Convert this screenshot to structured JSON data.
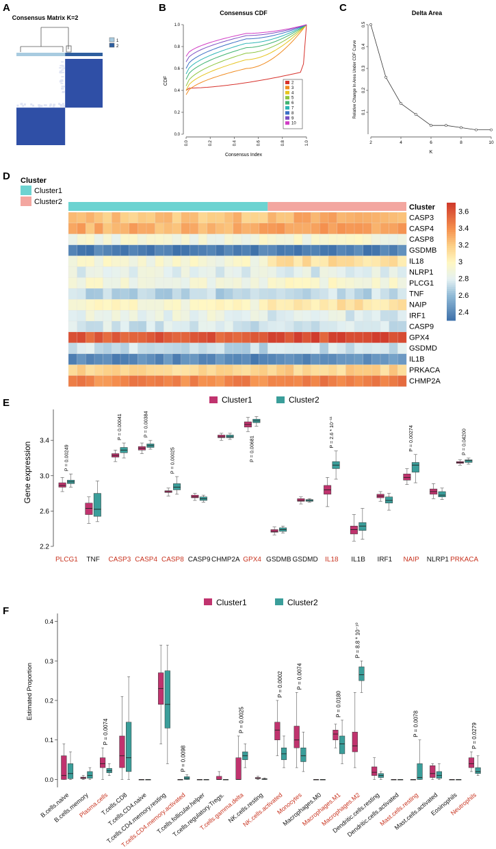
{
  "colors": {
    "cluster1": "#c0336e",
    "cluster2": "#3a9e9a",
    "clusterbar1": "#6cd3d1",
    "clusterbar2": "#f3a6a0",
    "highlight": "#c8331f",
    "consensus_dark": "#2f4fa6",
    "consensus_light": "#dfe4f4"
  },
  "panels": {
    "a": "A",
    "b": "B",
    "c": "C",
    "d": "D",
    "e": "E",
    "f": "F"
  },
  "panel_a": {
    "title": "Consensus Matrix K=2",
    "legend": [
      "1",
      "2"
    ],
    "k": 2
  },
  "chart_data": [
    {
      "id": "consensus_cdf",
      "type": "line",
      "title": "Consensus CDF",
      "xlabel": "Consensus Index",
      "ylabel": "CDF",
      "xlim": [
        0,
        1
      ],
      "ylim": [
        0,
        1
      ],
      "xticks": [
        "0.0",
        "0.2",
        "0.4",
        "0.6",
        "0.8",
        "1.0"
      ],
      "yticks": [
        "0.0",
        "0.2",
        "0.4",
        "0.6",
        "0.8",
        "1.0"
      ],
      "series": [
        {
          "name": "2",
          "color": "#d7302a",
          "start": 0.42,
          "mid": 0.5
        },
        {
          "name": "3",
          "color": "#f08a1e",
          "start": 0.36,
          "mid": 0.6
        },
        {
          "name": "4",
          "color": "#e6c31d",
          "start": 0.4,
          "mid": 0.68
        },
        {
          "name": "5",
          "color": "#8dc53f",
          "start": 0.44,
          "mid": 0.74
        },
        {
          "name": "6",
          "color": "#3fb270",
          "start": 0.5,
          "mid": 0.79
        },
        {
          "name": "7",
          "color": "#2cb5b5",
          "start": 0.55,
          "mid": 0.83
        },
        {
          "name": "8",
          "color": "#3a6fc4",
          "start": 0.6,
          "mid": 0.87
        },
        {
          "name": "9",
          "color": "#7a4ec2",
          "start": 0.66,
          "mid": 0.9
        },
        {
          "name": "10",
          "color": "#d03bc4",
          "start": 0.71,
          "mid": 0.92
        }
      ]
    },
    {
      "id": "delta_area",
      "type": "line",
      "title": "Delta Area",
      "xlabel": "K",
      "ylabel": "Relative Change In Area Under CDF Curve",
      "xlim": [
        2,
        10
      ],
      "ylim": [
        0,
        0.5
      ],
      "xticks": [
        "2",
        "4",
        "6",
        "8",
        "10"
      ],
      "yticks": [
        "0.1",
        "0.2",
        "0.3",
        "0.4",
        "0.5"
      ],
      "x": [
        2,
        3,
        4,
        5,
        6,
        7,
        8,
        9,
        10
      ],
      "values": [
        0.5,
        0.26,
        0.14,
        0.09,
        0.04,
        0.04,
        0.03,
        0.02,
        0.02
      ]
    },
    {
      "id": "heatmap",
      "type": "heatmap",
      "legend_title": "Cluster",
      "legend_entries": [
        "Cluster1",
        "Cluster2"
      ],
      "annotation_label": "Cluster",
      "cluster1_samples": 23,
      "cluster2_samples": 16,
      "rows": [
        "CASP3",
        "CASP4",
        "CASP8",
        "GSDMB",
        "IL18",
        "NLRP1",
        "PLCG1",
        "TNF",
        "NAIP",
        "IRF1",
        "CASP9",
        "GPX4",
        "GSDMD",
        "IL1B",
        "PRKACA",
        "CHMP2A"
      ],
      "row_mean_c1": [
        3.23,
        3.3,
        2.9,
        2.38,
        2.92,
        2.82,
        2.9,
        2.7,
        2.95,
        2.85,
        2.76,
        3.58,
        2.73,
        2.42,
        3.15,
        3.44
      ],
      "row_mean_c2": [
        3.29,
        3.34,
        2.92,
        2.39,
        3.12,
        2.8,
        2.93,
        2.72,
        3.1,
        2.8,
        2.74,
        3.62,
        2.73,
        2.44,
        3.17,
        3.45
      ],
      "colorbar_ticks": [
        "3.6",
        "3.4",
        "3.2",
        "3",
        "2.8",
        "2.6",
        "2.4"
      ],
      "range": [
        2.3,
        3.7
      ]
    },
    {
      "id": "gene_expression",
      "type": "box",
      "ylabel": "Gene expression",
      "ylim": [
        2.2,
        3.75
      ],
      "yticks": [
        "2.2",
        "2.6",
        "3.0",
        "3.4"
      ],
      "legend": [
        "Cluster1",
        "Cluster2"
      ],
      "categories": [
        "PLCG1",
        "TNF",
        "CASP3",
        "CASP4",
        "CASP8",
        "CASP9",
        "CHMP2A",
        "GPX4",
        "GSDMB",
        "GSDMD",
        "IL18",
        "IL1B",
        "IRF1",
        "NAIP",
        "NLRP1",
        "PRKACA"
      ],
      "highlighted": [
        "PLCG1",
        "CASP3",
        "CASP4",
        "CASP8",
        "GPX4",
        "IL18",
        "NAIP",
        "PRKACA"
      ],
      "pvalues": {
        "PLCG1": "P = 0.00249",
        "CASP3": "P = 0.00041",
        "CASP4": "P = 0.00384",
        "CASP8": "P = 0.00025",
        "GPX4": "P = 0.00681",
        "IL18": "P = 2.6 * 10⁻¹¹",
        "NAIP": "P = 0.00274",
        "PRKACA": "P = 0.04200"
      },
      "series": [
        {
          "name": "Cluster1",
          "boxes": [
            [
              2.82,
              2.87,
              2.89,
              2.92,
              2.98
            ],
            [
              2.46,
              2.56,
              2.63,
              2.69,
              2.76
            ],
            [
              3.16,
              3.21,
              3.23,
              3.25,
              3.29
            ],
            [
              3.25,
              3.29,
              3.31,
              3.33,
              3.37
            ],
            [
              2.77,
              2.81,
              2.82,
              2.83,
              2.86
            ],
            [
              2.72,
              2.75,
              2.76,
              2.78,
              2.8
            ],
            [
              3.4,
              3.43,
              3.44,
              3.46,
              3.48
            ],
            [
              3.5,
              3.55,
              3.58,
              3.61,
              3.66
            ],
            [
              2.33,
              2.36,
              2.37,
              2.39,
              2.42
            ],
            [
              2.68,
              2.71,
              2.72,
              2.74,
              2.76
            ],
            [
              2.65,
              2.79,
              2.84,
              2.89,
              2.98
            ],
            [
              2.26,
              2.34,
              2.39,
              2.43,
              2.56
            ],
            [
              2.71,
              2.75,
              2.77,
              2.79,
              2.82
            ],
            [
              2.9,
              2.95,
              2.98,
              3.02,
              3.08
            ],
            [
              2.74,
              2.79,
              2.82,
              2.85,
              2.91
            ],
            [
              3.12,
              3.14,
              3.15,
              3.16,
              3.18
            ]
          ]
        },
        {
          "name": "Cluster2",
          "boxes": [
            [
              2.87,
              2.91,
              2.93,
              2.95,
              3.02
            ],
            [
              2.48,
              2.54,
              2.62,
              2.8,
              2.94
            ],
            [
              3.2,
              3.26,
              3.29,
              3.32,
              3.37
            ],
            [
              3.3,
              3.32,
              3.34,
              3.36,
              3.4
            ],
            [
              2.79,
              2.84,
              2.87,
              2.91,
              2.99
            ],
            [
              2.7,
              2.72,
              2.74,
              2.76,
              2.78
            ],
            [
              3.41,
              3.43,
              3.44,
              3.46,
              3.48
            ],
            [
              3.56,
              3.6,
              3.62,
              3.64,
              3.67
            ],
            [
              2.35,
              2.37,
              2.39,
              2.41,
              2.43
            ],
            [
              2.7,
              2.71,
              2.72,
              2.73,
              2.74
            ],
            [
              2.96,
              3.08,
              3.12,
              3.16,
              3.28
            ],
            [
              2.28,
              2.38,
              2.43,
              2.47,
              2.63
            ],
            [
              2.61,
              2.69,
              2.72,
              2.76,
              2.8
            ],
            [
              2.92,
              3.04,
              3.12,
              3.15,
              3.24
            ],
            [
              2.73,
              2.76,
              2.78,
              2.82,
              2.86
            ],
            [
              3.13,
              3.15,
              3.17,
              3.18,
              3.2
            ]
          ]
        }
      ]
    },
    {
      "id": "immune_proportion",
      "type": "box",
      "ylabel": "Estimated Proportion",
      "ylim": [
        -0.02,
        0.42
      ],
      "yticks": [
        "0.0",
        "0.1",
        "0.2",
        "0.3",
        "0.4"
      ],
      "legend": [
        "Cluster1",
        "Cluster2"
      ],
      "categories": [
        "B.cells.naive",
        "B.cells.memory",
        "Plasma.cells",
        "T.cells.CD8",
        "T.cells.CD4.naive",
        "T.cells.CD4.memory.resting",
        "T.cells.CD4.memory.activated",
        "T.cells.follicular.helper",
        "T.cells.regulatory.Tregs.",
        "T.cells.gamma.delta",
        "NK.cells.resting",
        "NK.cells.activated",
        "Monocytes",
        "Macrophages.M0",
        "Macrophages.M1",
        "Macrophages.M2",
        "Dendritic.cells.resting",
        "Dendritic.cells.activated",
        "Mast.cells.resting",
        "Mast.cells.activated",
        "Eosinophils",
        "Neutrophils"
      ],
      "highlighted": [
        "Plasma.cells",
        "T.cells.CD4.memory.activated",
        "T.cells.gamma.delta",
        "NK.cells.activated",
        "Monocytes",
        "Macrophages.M1",
        "Macrophages.M2",
        "Mast.cells.resting",
        "Neutrophils"
      ],
      "pvalues": {
        "Plasma.cells": "P = 0.0074",
        "T.cells.CD4.memory.activated": "P = 0.0098",
        "T.cells.gamma.delta": "P = 0.0025",
        "NK.cells.activated": "P = 0.0002",
        "Monocytes": "P = 0.0074",
        "Macrophages.M1": "P = 0.0180",
        "Macrophages.M2": "P = 8.8 * 10⁻¹⁰",
        "Mast.cells.resting": "P = 0.0078",
        "Neutrophils": "P = 0.0279"
      },
      "series": [
        {
          "name": "Cluster1",
          "boxes": [
            [
              0,
              0,
              0.01,
              0.06,
              0.09
            ],
            [
              0,
              0.002,
              0.004,
              0.006,
              0.01
            ],
            [
              0,
              0.03,
              0.04,
              0.055,
              0.08
            ],
            [
              0,
              0.03,
              0.06,
              0.11,
              0.21
            ],
            [
              0,
              0,
              0,
              0,
              0
            ],
            [
              0.09,
              0.19,
              0.23,
              0.27,
              0.34
            ],
            [
              0,
              0,
              0,
              0,
              0
            ],
            [
              0,
              0,
              0,
              0,
              0
            ],
            [
              0,
              0,
              0,
              0.008,
              0.02
            ],
            [
              0,
              0,
              0,
              0.055,
              0.11
            ],
            [
              0,
              0.002,
              0.003,
              0.005,
              0.008
            ],
            [
              0.06,
              0.1,
              0.125,
              0.145,
              0.2
            ],
            [
              0.03,
              0.08,
              0.1,
              0.135,
              0.22
            ],
            [
              0,
              0,
              0,
              0,
              0
            ],
            [
              0.08,
              0.1,
              0.115,
              0.125,
              0.14
            ],
            [
              0.03,
              0.07,
              0.085,
              0.12,
              0.22
            ],
            [
              0,
              0.01,
              0.018,
              0.032,
              0.055
            ],
            [
              0,
              0,
              0,
              0,
              0
            ],
            [
              0,
              0,
              0,
              0,
              0
            ],
            [
              0,
              0.005,
              0.015,
              0.035,
              0.04
            ],
            [
              0,
              0,
              0,
              0,
              0
            ],
            [
              0.02,
              0.03,
              0.04,
              0.055,
              0.07
            ]
          ]
        },
        {
          "name": "Cluster2",
          "boxes": [
            [
              0,
              0.002,
              0.015,
              0.04,
              0.07
            ],
            [
              0,
              0.003,
              0.01,
              0.02,
              0.03
            ],
            [
              0.01,
              0.017,
              0.022,
              0.028,
              0.04
            ],
            [
              0,
              0.02,
              0.055,
              0.145,
              0.26
            ],
            [
              0,
              0,
              0,
              0,
              0
            ],
            [
              0.04,
              0.13,
              0.19,
              0.275,
              0.34
            ],
            [
              0,
              0,
              0.003,
              0.007,
              0.012
            ],
            [
              0,
              0,
              0,
              0,
              0
            ],
            [
              0,
              0,
              0,
              0,
              0
            ],
            [
              0.03,
              0.05,
              0.06,
              0.07,
              0.09
            ],
            [
              0,
              0,
              0.001,
              0.002,
              0.004
            ],
            [
              0.03,
              0.05,
              0.065,
              0.08,
              0.11
            ],
            [
              0.02,
              0.045,
              0.06,
              0.08,
              0.12
            ],
            [
              0,
              0,
              0,
              0,
              0
            ],
            [
              0.04,
              0.065,
              0.09,
              0.11,
              0.15
            ],
            [
              0.22,
              0.25,
              0.265,
              0.285,
              0.3
            ],
            [
              0,
              0.005,
              0.01,
              0.015,
              0.02
            ],
            [
              0,
              0,
              0,
              0,
              0
            ],
            [
              0,
              0,
              0.005,
              0.04,
              0.1
            ],
            [
              0,
              0.003,
              0.01,
              0.02,
              0.04
            ],
            [
              0,
              0,
              0,
              0,
              0
            ],
            [
              0.01,
              0.015,
              0.02,
              0.03,
              0.06
            ]
          ]
        }
      ]
    }
  ]
}
